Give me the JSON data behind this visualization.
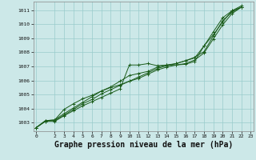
{
  "background_color": "#cce8e8",
  "grid_color": "#99cccc",
  "line_color": "#1a5c1a",
  "xlabel": "Graphe pression niveau de la mer (hPa)",
  "xlabel_fontsize": 7.0,
  "ylim": [
    1002.4,
    1011.6
  ],
  "xlim": [
    -0.3,
    23.3
  ],
  "yticks": [
    1003,
    1004,
    1005,
    1006,
    1007,
    1008,
    1009,
    1010,
    1011
  ],
  "xticks": [
    0,
    2,
    3,
    4,
    5,
    6,
    7,
    8,
    9,
    10,
    11,
    12,
    13,
    14,
    15,
    16,
    17,
    18,
    19,
    20,
    21,
    22,
    23
  ],
  "series": [
    [
      1002.65,
      1003.1,
      1003.1,
      1003.5,
      1003.85,
      1004.2,
      1004.5,
      1004.8,
      1005.1,
      1005.4,
      1007.1,
      1007.1,
      1007.2,
      1007.05,
      1007.1,
      1007.1,
      1007.15,
      1007.35,
      1008.45,
      1009.25,
      1010.15,
      1010.95,
      1011.2
    ],
    [
      1002.65,
      1003.15,
      1003.2,
      1003.65,
      1004.05,
      1004.45,
      1004.85,
      1005.25,
      1005.55,
      1005.95,
      1006.35,
      1006.5,
      1006.65,
      1006.95,
      1007.1,
      1007.2,
      1007.4,
      1007.65,
      1008.05,
      1009.15,
      1010.25,
      1010.85,
      1011.2
    ],
    [
      1002.65,
      1003.15,
      1003.2,
      1003.95,
      1004.35,
      1004.7,
      1004.95,
      1005.25,
      1005.5,
      1005.7,
      1005.95,
      1006.25,
      1006.55,
      1006.85,
      1007.05,
      1007.2,
      1007.4,
      1007.6,
      1008.45,
      1009.45,
      1010.45,
      1010.95,
      1011.3
    ],
    [
      1002.65,
      1003.1,
      1003.15,
      1003.55,
      1003.95,
      1004.35,
      1004.65,
      1005.05,
      1005.35,
      1005.65,
      1005.95,
      1006.15,
      1006.45,
      1006.75,
      1006.95,
      1007.1,
      1007.2,
      1007.45,
      1007.95,
      1008.95,
      1009.95,
      1010.75,
      1011.2
    ]
  ],
  "x_values": [
    0,
    1,
    2,
    3,
    4,
    5,
    6,
    7,
    8,
    9,
    10,
    11,
    12,
    13,
    14,
    15,
    16,
    17,
    18,
    19,
    20,
    21,
    22
  ]
}
